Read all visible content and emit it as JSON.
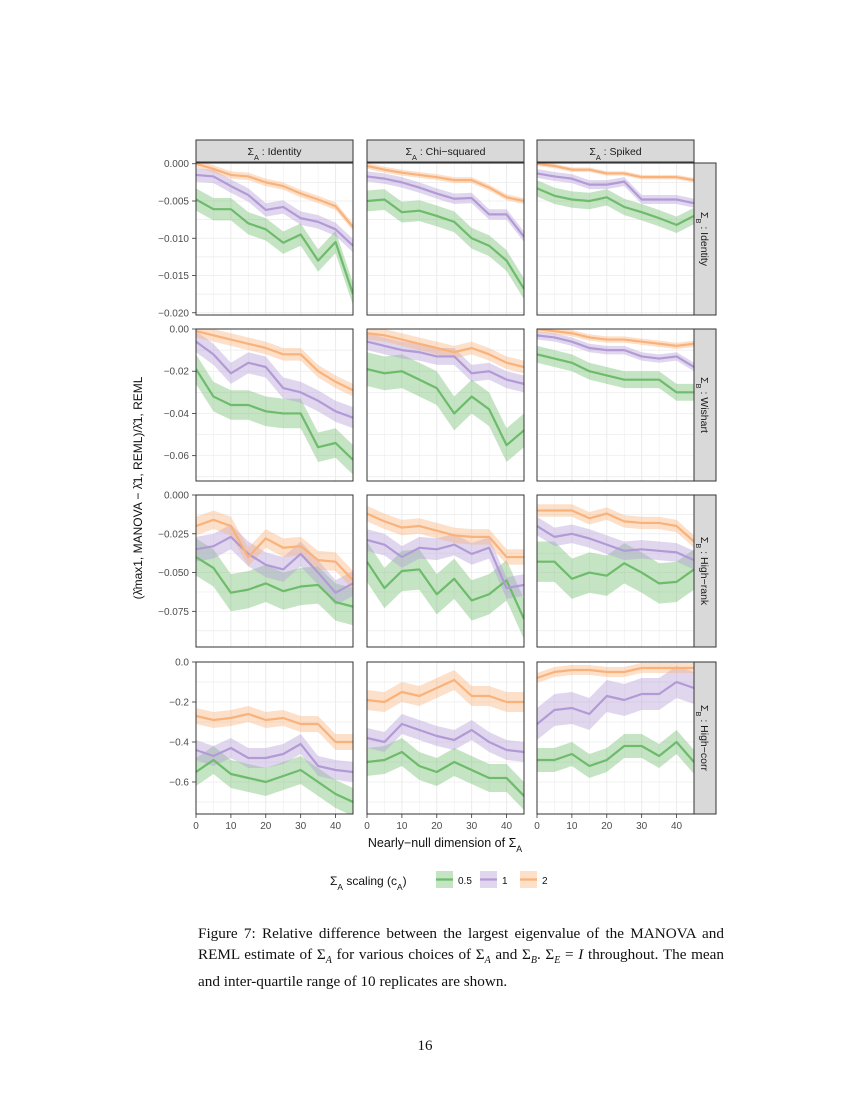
{
  "chart_data": {
    "type": "line",
    "description_of_marks": "mean line with inter-quartile ribbon",
    "x_label": "Nearly−null dimension of Σ_A",
    "y_label": "(λ̂max1, MANOVA − λ̂1, REML)/λ̂1, REML",
    "x": [
      0,
      5,
      10,
      15,
      20,
      25,
      30,
      35,
      40,
      45
    ],
    "xlim": [
      0,
      45
    ],
    "x_ticks": [
      "0",
      "10",
      "20",
      "30",
      "40"
    ],
    "grid": true,
    "legend": {
      "position": "bottom",
      "title": "Σ_A scaling (c_A)",
      "entries": [
        {
          "label": "0.5",
          "color": "#6dbb6b"
        },
        {
          "label": "1",
          "color": "#b29ad6"
        },
        {
          "label": "2",
          "color": "#f9b27a"
        }
      ]
    },
    "columns": [
      "Σ_A : Identity",
      "Σ_A : Chi−squared",
      "Σ_A : Spiked"
    ],
    "rows": [
      {
        "label": "Σ_B : Identity",
        "ylim": [
          -0.0203,
          0.0001
        ],
        "ticks": [
          0,
          -0.005,
          -0.01,
          -0.015,
          -0.02
        ],
        "tick_labels": [
          "0.000",
          "−0.005",
          "−0.010",
          "−0.015",
          "−0.020"
        ],
        "panels": [
          {
            "0.5": {
              "mean": [
                -0.0048,
                -0.0061,
                -0.0061,
                -0.008,
                -0.0088,
                -0.0106,
                -0.0095,
                -0.013,
                -0.0105,
                -0.0175
              ],
              "iqr_half": 0.0015
            },
            "1": {
              "mean": [
                -0.0015,
                -0.0017,
                -0.003,
                -0.0042,
                -0.0062,
                -0.0058,
                -0.0073,
                -0.0078,
                -0.0088,
                -0.011
              ],
              "iqr_half": 0.0009
            },
            "2": {
              "mean": [
                0,
                -0.0007,
                -0.0015,
                -0.0017,
                -0.0025,
                -0.003,
                -0.004,
                -0.0048,
                -0.0057,
                -0.0085
              ],
              "iqr_half": 0.0005
            }
          },
          {
            "0.5": {
              "mean": [
                -0.005,
                -0.0048,
                -0.0065,
                -0.0063,
                -0.007,
                -0.0078,
                -0.01,
                -0.011,
                -0.013,
                -0.0168
              ],
              "iqr_half": 0.0014
            },
            "1": {
              "mean": [
                -0.0017,
                -0.002,
                -0.0025,
                -0.0032,
                -0.004,
                -0.0047,
                -0.0046,
                -0.0068,
                -0.0068,
                -0.0098
              ],
              "iqr_half": 0.0007
            },
            "2": {
              "mean": [
                -0.0003,
                -0.0008,
                -0.0012,
                -0.0015,
                -0.0018,
                -0.0022,
                -0.0022,
                -0.0032,
                -0.0045,
                -0.005
              ],
              "iqr_half": 0.0004
            }
          },
          {
            "0.5": {
              "mean": [
                -0.0033,
                -0.0043,
                -0.0048,
                -0.005,
                -0.0045,
                -0.0058,
                -0.0065,
                -0.0073,
                -0.0082,
                -0.007
              ],
              "iqr_half": 0.0011
            },
            "1": {
              "mean": [
                -0.0013,
                -0.0017,
                -0.002,
                -0.0028,
                -0.0028,
                -0.0024,
                -0.0048,
                -0.0048,
                -0.0048,
                -0.0053
              ],
              "iqr_half": 0.0006
            },
            "2": {
              "mean": [
                0,
                -0.0003,
                -0.0008,
                -0.0008,
                -0.0013,
                -0.0013,
                -0.0018,
                -0.0018,
                -0.0018,
                -0.0022
              ],
              "iqr_half": 0.0003
            }
          }
        ]
      },
      {
        "label": "Σ_B : Wishart",
        "ylim": [
          -0.072,
          0.0
        ],
        "ticks": [
          0,
          -0.02,
          -0.04,
          -0.06
        ],
        "tick_labels": [
          "0.00",
          "−0.02",
          "−0.04",
          "−0.06"
        ],
        "panels": [
          {
            "0.5": {
              "mean": [
                -0.019,
                -0.032,
                -0.036,
                -0.036,
                -0.039,
                -0.04,
                -0.04,
                -0.056,
                -0.054,
                -0.062
              ],
              "iqr_half": 0.007
            },
            "1": {
              "mean": [
                -0.006,
                -0.012,
                -0.021,
                -0.016,
                -0.018,
                -0.028,
                -0.03,
                -0.034,
                -0.039,
                -0.042
              ],
              "iqr_half": 0.005
            },
            "2": {
              "mean": [
                -0.001,
                -0.003,
                -0.005,
                -0.007,
                -0.009,
                -0.012,
                -0.012,
                -0.02,
                -0.025,
                -0.029
              ],
              "iqr_half": 0.003
            }
          },
          {
            "0.5": {
              "mean": [
                -0.019,
                -0.021,
                -0.02,
                -0.024,
                -0.028,
                -0.04,
                -0.032,
                -0.038,
                -0.055,
                -0.048
              ],
              "iqr_half": 0.008
            },
            "1": {
              "mean": [
                -0.006,
                -0.008,
                -0.01,
                -0.011,
                -0.013,
                -0.013,
                -0.021,
                -0.02,
                -0.024,
                -0.026
              ],
              "iqr_half": 0.004
            },
            "2": {
              "mean": [
                -0.002,
                -0.003,
                -0.005,
                -0.007,
                -0.009,
                -0.011,
                -0.009,
                -0.012,
                -0.016,
                -0.018
              ],
              "iqr_half": 0.003
            }
          },
          {
            "0.5": {
              "mean": [
                -0.012,
                -0.014,
                -0.016,
                -0.02,
                -0.022,
                -0.024,
                -0.024,
                -0.024,
                -0.03,
                -0.03
              ],
              "iqr_half": 0.004
            },
            "1": {
              "mean": [
                -0.003,
                -0.004,
                -0.006,
                -0.009,
                -0.01,
                -0.01,
                -0.013,
                -0.014,
                -0.013,
                -0.018
              ],
              "iqr_half": 0.002
            },
            "2": {
              "mean": [
                0,
                -0.001,
                -0.002,
                -0.004,
                -0.005,
                -0.005,
                -0.006,
                -0.007,
                -0.008,
                -0.007
              ],
              "iqr_half": 0.0015
            }
          }
        ]
      },
      {
        "label": "Σ_B : High−rank",
        "ylim": [
          -0.098,
          0.0
        ],
        "ticks": [
          0,
          -0.025,
          -0.05,
          -0.075
        ],
        "tick_labels": [
          "0.000",
          "−0.025",
          "−0.050",
          "−0.075"
        ],
        "panels": [
          {
            "0.5": {
              "mean": [
                -0.04,
                -0.047,
                -0.063,
                -0.061,
                -0.057,
                -0.062,
                -0.059,
                -0.058,
                -0.069,
                -0.072
              ],
              "iqr_half": 0.012
            },
            "1": {
              "mean": [
                -0.035,
                -0.033,
                -0.027,
                -0.038,
                -0.045,
                -0.048,
                -0.038,
                -0.05,
                -0.063,
                -0.057
              ],
              "iqr_half": 0.008
            },
            "2": {
              "mean": [
                -0.02,
                -0.016,
                -0.02,
                -0.04,
                -0.028,
                -0.034,
                -0.033,
                -0.042,
                -0.043,
                -0.055
              ],
              "iqr_half": 0.006
            }
          },
          {
            "0.5": {
              "mean": [
                -0.043,
                -0.06,
                -0.049,
                -0.048,
                -0.064,
                -0.054,
                -0.068,
                -0.064,
                -0.055,
                -0.08
              ],
              "iqr_half": 0.013
            },
            "1": {
              "mean": [
                -0.029,
                -0.032,
                -0.04,
                -0.034,
                -0.035,
                -0.032,
                -0.038,
                -0.034,
                -0.06,
                -0.058
              ],
              "iqr_half": 0.007
            },
            "2": {
              "mean": [
                -0.012,
                -0.017,
                -0.021,
                -0.02,
                -0.023,
                -0.026,
                -0.027,
                -0.027,
                -0.04,
                -0.04
              ],
              "iqr_half": 0.005
            }
          },
          {
            "0.5": {
              "mean": [
                -0.043,
                -0.043,
                -0.054,
                -0.05,
                -0.052,
                -0.044,
                -0.05,
                -0.057,
                -0.056,
                -0.048
              ],
              "iqr_half": 0.013
            },
            "1": {
              "mean": [
                -0.02,
                -0.027,
                -0.025,
                -0.028,
                -0.032,
                -0.036,
                -0.035,
                -0.036,
                -0.037,
                -0.042
              ],
              "iqr_half": 0.006
            },
            "2": {
              "mean": [
                -0.01,
                -0.01,
                -0.01,
                -0.015,
                -0.012,
                -0.017,
                -0.018,
                -0.018,
                -0.02,
                -0.03
              ],
              "iqr_half": 0.004
            }
          }
        ]
      },
      {
        "label": "Σ_B : High−corr",
        "ylim": [
          -0.76,
          0.0
        ],
        "ticks": [
          0,
          -0.2,
          -0.4,
          -0.6
        ],
        "tick_labels": [
          "0.0",
          "−0.2",
          "−0.4",
          "−0.6"
        ],
        "panels": [
          {
            "0.5": {
              "mean": [
                -0.55,
                -0.49,
                -0.56,
                -0.58,
                -0.6,
                -0.57,
                -0.54,
                -0.6,
                -0.66,
                -0.7
              ],
              "iqr_half": 0.07
            },
            "1": {
              "mean": [
                -0.44,
                -0.47,
                -0.43,
                -0.48,
                -0.48,
                -0.46,
                -0.41,
                -0.52,
                -0.54,
                -0.55
              ],
              "iqr_half": 0.05
            },
            "2": {
              "mean": [
                -0.27,
                -0.29,
                -0.28,
                -0.26,
                -0.29,
                -0.28,
                -0.31,
                -0.31,
                -0.4,
                -0.4
              ],
              "iqr_half": 0.04
            }
          },
          {
            "0.5": {
              "mean": [
                -0.5,
                -0.49,
                -0.45,
                -0.52,
                -0.55,
                -0.5,
                -0.54,
                -0.58,
                -0.58,
                -0.67
              ],
              "iqr_half": 0.07
            },
            "1": {
              "mean": [
                -0.38,
                -0.4,
                -0.31,
                -0.34,
                -0.37,
                -0.39,
                -0.34,
                -0.4,
                -0.44,
                -0.45
              ],
              "iqr_half": 0.05
            },
            "2": {
              "mean": [
                -0.19,
                -0.2,
                -0.15,
                -0.17,
                -0.13,
                -0.09,
                -0.17,
                -0.17,
                -0.2,
                -0.2
              ],
              "iqr_half": 0.05
            }
          },
          {
            "0.5": {
              "mean": [
                -0.49,
                -0.49,
                -0.46,
                -0.52,
                -0.49,
                -0.42,
                -0.42,
                -0.47,
                -0.4,
                -0.5
              ],
              "iqr_half": 0.06
            },
            "1": {
              "mean": [
                -0.31,
                -0.24,
                -0.23,
                -0.26,
                -0.17,
                -0.19,
                -0.16,
                -0.16,
                -0.1,
                -0.13
              ],
              "iqr_half": 0.08
            },
            "2": {
              "mean": [
                -0.08,
                -0.05,
                -0.04,
                -0.04,
                -0.05,
                -0.05,
                -0.03,
                -0.03,
                -0.03,
                -0.03
              ],
              "iqr_half": 0.025
            }
          }
        ]
      }
    ]
  },
  "caption": "Figure 7: Relative difference between the largest eigenvalue of the MANOVA and REML estimate of Σ_A for various choices of Σ_A and Σ_B. Σ_E = I throughout. The mean and inter-quartile range of 10 replicates are shown.",
  "page_number": "16"
}
